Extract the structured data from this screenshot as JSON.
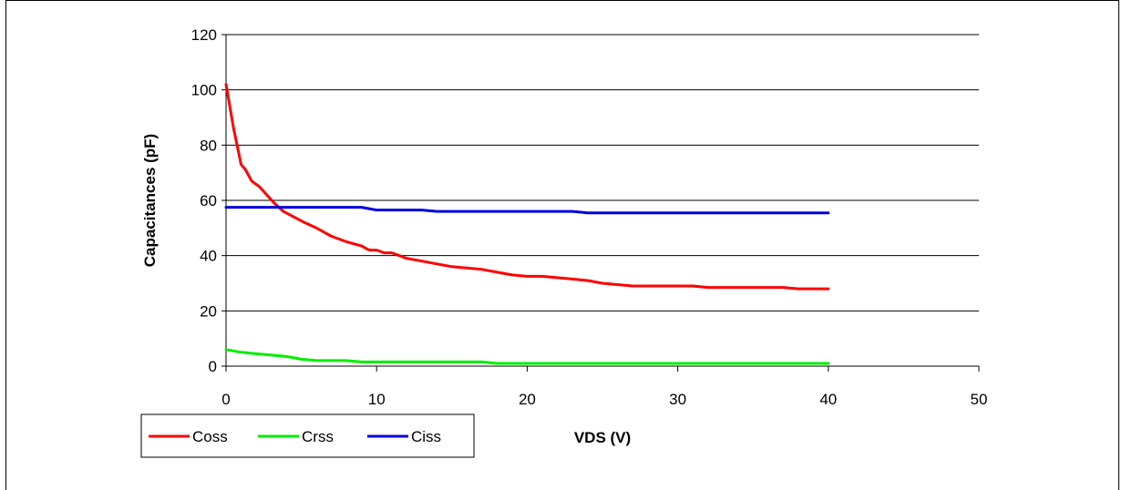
{
  "chart_data": {
    "type": "line",
    "title": "",
    "xlabel": "VDS (V)",
    "ylabel": "Capacitances (pF)",
    "xlim": [
      0,
      50
    ],
    "ylim": [
      0,
      120
    ],
    "x_ticks": [
      0,
      10,
      20,
      30,
      40,
      50
    ],
    "y_ticks": [
      0,
      20,
      40,
      60,
      80,
      100,
      120
    ],
    "grid": "horizontal",
    "legend_position": "bottom-left",
    "series": [
      {
        "name": "Coss",
        "color": "#ff0000",
        "x": [
          0,
          0.5,
          1,
          1.3,
          1.7,
          2.2,
          2.7,
          3.2,
          3.8,
          4.5,
          5.2,
          6,
          7,
          8,
          9,
          9.5,
          10,
          10.5,
          11,
          12,
          13,
          14,
          15,
          16,
          17,
          18,
          19,
          20,
          21,
          22,
          23,
          24,
          25,
          26,
          27,
          28,
          29,
          30,
          31,
          32,
          33,
          34,
          35,
          36,
          37,
          38,
          39,
          40
        ],
        "y": [
          102,
          86,
          73,
          71,
          67,
          65,
          62,
          59,
          56,
          54,
          52,
          50,
          47,
          45,
          43.5,
          42,
          42,
          41,
          41,
          39,
          38,
          37,
          36,
          35.5,
          35,
          34,
          33,
          32.5,
          32.5,
          32,
          31.5,
          31,
          30,
          29.5,
          29,
          29,
          29,
          29,
          29,
          28.5,
          28.5,
          28.5,
          28.5,
          28.5,
          28.5,
          28,
          28,
          28
        ]
      },
      {
        "name": "Crss",
        "color": "#00ee00",
        "x": [
          0,
          1,
          2,
          3,
          4,
          5,
          6,
          7,
          8,
          9,
          10,
          12,
          14,
          16,
          17,
          18,
          20,
          25,
          30,
          35,
          40
        ],
        "y": [
          6,
          5,
          4.5,
          4,
          3.5,
          2.5,
          2,
          2,
          2,
          1.5,
          1.5,
          1.5,
          1.5,
          1.5,
          1.5,
          1,
          1,
          1,
          1,
          1,
          1
        ]
      },
      {
        "name": "Ciss",
        "color": "#0000dd",
        "x": [
          0,
          3,
          5,
          7,
          9,
          10,
          11,
          13,
          14,
          16,
          18,
          20,
          23,
          24,
          26,
          30,
          35,
          40
        ],
        "y": [
          57.5,
          57.5,
          57.5,
          57.5,
          57.5,
          56.5,
          56.5,
          56.5,
          56,
          56,
          56,
          56,
          56,
          55.5,
          55.5,
          55.5,
          55.5,
          55.5
        ]
      }
    ]
  }
}
